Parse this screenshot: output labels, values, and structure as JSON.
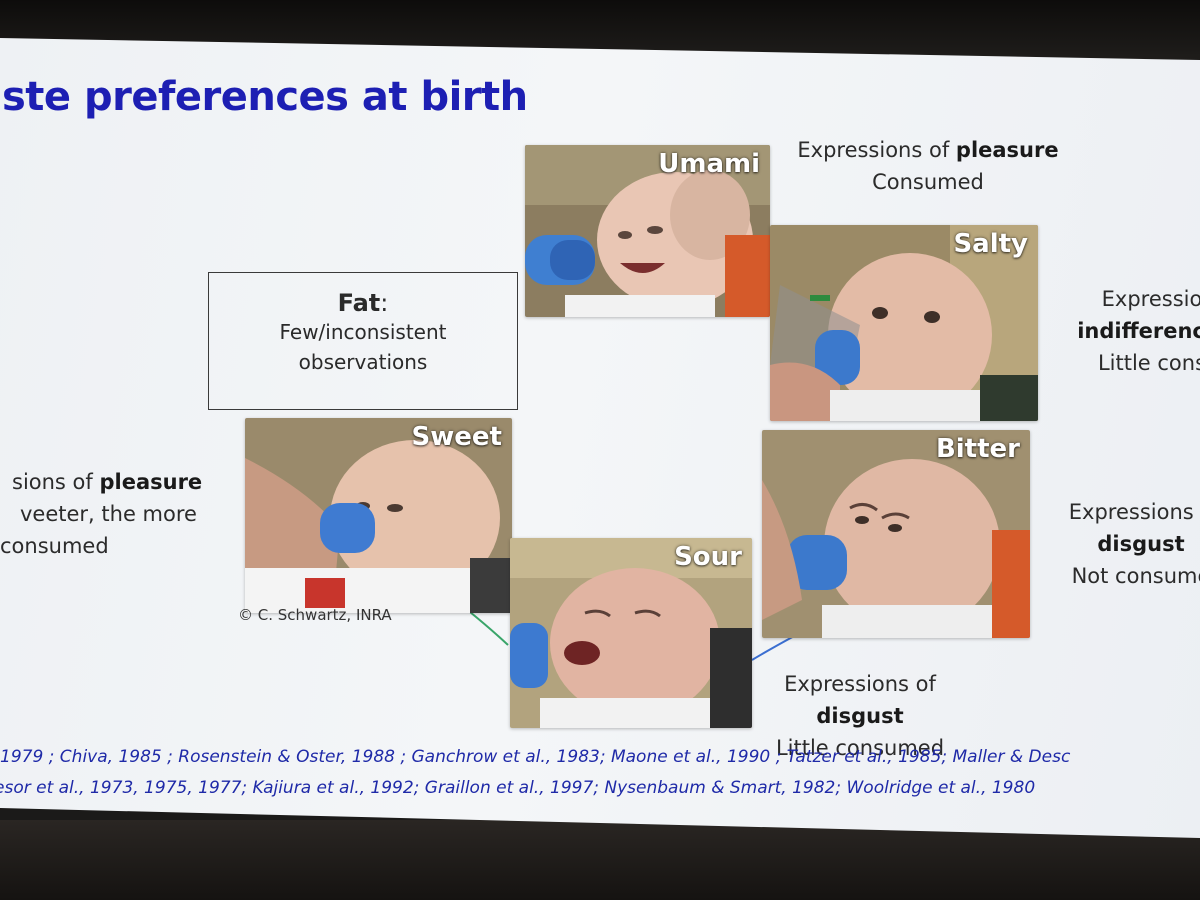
{
  "slide": {
    "title": "ste preferences at birth",
    "credit": "© C. Schwartz, INRA"
  },
  "fat": {
    "label": "Fat",
    "colon": ":",
    "line1": "Few/inconsistent",
    "line2": "observations"
  },
  "tastes": {
    "umami": "Umami",
    "salty": "Salty",
    "sweet": "Sweet",
    "sour": "Sour",
    "bitter": "Bitter"
  },
  "captions": {
    "umami": {
      "pre": "Expressions of ",
      "bold": "pleasure",
      "line2": "Consumed"
    },
    "salty": {
      "line1": "Expressio",
      "bold": "indifference/",
      "line3": "Little cons"
    },
    "sweet": {
      "pre": "sions of ",
      "bold": "pleasure",
      "line2": "veeter, the more",
      "line3": "consumed"
    },
    "bitter": {
      "line1": "Expressions o",
      "bold": "disgust",
      "line3": "Not consume"
    },
    "sour": {
      "line1": "Expressions of",
      "bold": "disgust",
      "line3": "Little consumed"
    }
  },
  "references": {
    "line1": "1979 ; Chiva, 1985 ; Rosenstein & Oster, 1988 ; Ganchrow et al., 1983; Maone et al., 1990 ; Tatzer et al., 1985; Maller & Desc",
    "line2": "esor et al., 1973, 1975, 1977; Kajiura et al., 1992; Graillon et al., 1997; Nysenbaum & Smart, 1982; Woolridge et al., 1980"
  },
  "colors": {
    "title": "#1d1fb3",
    "references": "#1f2aa8",
    "connector_green": "#3aa56a",
    "connector_blue": "#3b6fd1"
  }
}
